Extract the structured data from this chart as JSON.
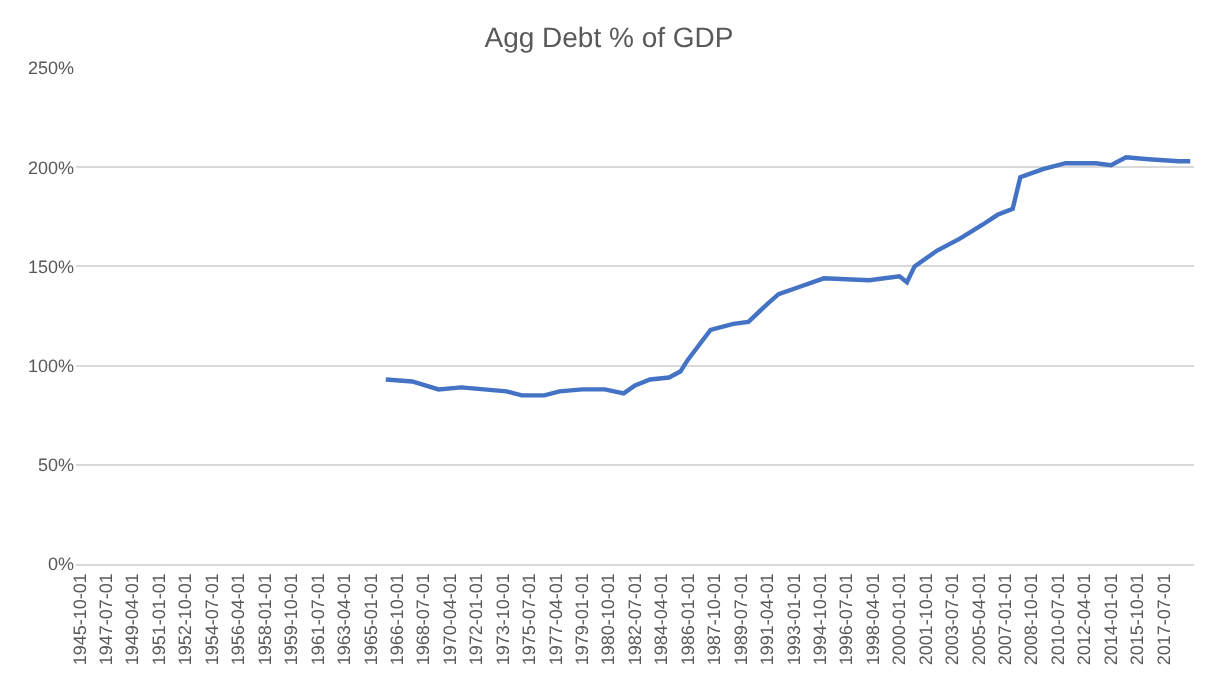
{
  "chart_data": {
    "type": "line",
    "title": "Agg Debt % of GDP",
    "x": [
      "1966-01-01",
      "1967-10-01",
      "1969-07-01",
      "1971-01-01",
      "1972-07-01",
      "1974-01-01",
      "1975-01-01",
      "1976-07-01",
      "1977-07-01",
      "1979-01-01",
      "1980-07-01",
      "1981-10-01",
      "1982-07-01",
      "1983-07-01",
      "1984-10-01",
      "1985-07-01",
      "1986-01-01",
      "1987-07-01",
      "1989-01-01",
      "1990-01-01",
      "1991-04-01",
      "1992-01-01",
      "1993-07-01",
      "1995-01-01",
      "1998-01-01",
      "2000-01-01",
      "2000-07-01",
      "2001-01-01",
      "2002-07-01",
      "2004-01-01",
      "2005-07-01",
      "2006-07-01",
      "2007-07-01",
      "2008-01-01",
      "2009-07-01",
      "2011-01-01",
      "2013-01-01",
      "2014-01-01",
      "2015-01-01",
      "2016-07-01",
      "2018-07-01",
      "2019-04-01"
    ],
    "series": [
      {
        "color": "#4472c4",
        "values": [
          93,
          92,
          88,
          89,
          88,
          87,
          85,
          85,
          87,
          88,
          88,
          86,
          90,
          93,
          94,
          97,
          103,
          118,
          121,
          122,
          131,
          136,
          140,
          144,
          143,
          145,
          142,
          150,
          158,
          164,
          171,
          176,
          179,
          195,
          199,
          202,
          202,
          201,
          205,
          204,
          203,
          203
        ]
      }
    ],
    "xlim": [
      "1945-07-01",
      "2019-07-01"
    ],
    "xticks": [
      "1945-10-01",
      "1947-07-01",
      "1949-04-01",
      "1951-01-01",
      "1952-10-01",
      "1954-07-01",
      "1956-04-01",
      "1958-01-01",
      "1959-10-01",
      "1961-07-01",
      "1963-04-01",
      "1965-01-01",
      "1966-10-01",
      "1968-07-01",
      "1970-04-01",
      "1972-01-01",
      "1973-10-01",
      "1975-07-01",
      "1977-04-01",
      "1979-01-01",
      "1980-10-01",
      "1982-07-01",
      "1984-04-01",
      "1986-01-01",
      "1987-10-01",
      "1989-07-01",
      "1991-04-01",
      "1993-01-01",
      "1994-10-01",
      "1996-07-01",
      "1998-04-01",
      "2000-01-01",
      "2001-10-01",
      "2003-07-01",
      "2005-04-01",
      "2007-01-01",
      "2008-10-01",
      "2010-07-01",
      "2012-04-01",
      "2014-01-01",
      "2015-10-01",
      "2017-07-01"
    ],
    "ylim": [
      0,
      250
    ],
    "yticks": [
      {
        "value": 0,
        "label": "0%"
      },
      {
        "value": 50,
        "label": "50%"
      },
      {
        "value": 100,
        "label": "100%"
      },
      {
        "value": 150,
        "label": "150%"
      },
      {
        "value": 200,
        "label": "200%"
      },
      {
        "value": 250,
        "label": "250%"
      }
    ],
    "grid": "y",
    "marker": "none",
    "line_style": "solid"
  }
}
